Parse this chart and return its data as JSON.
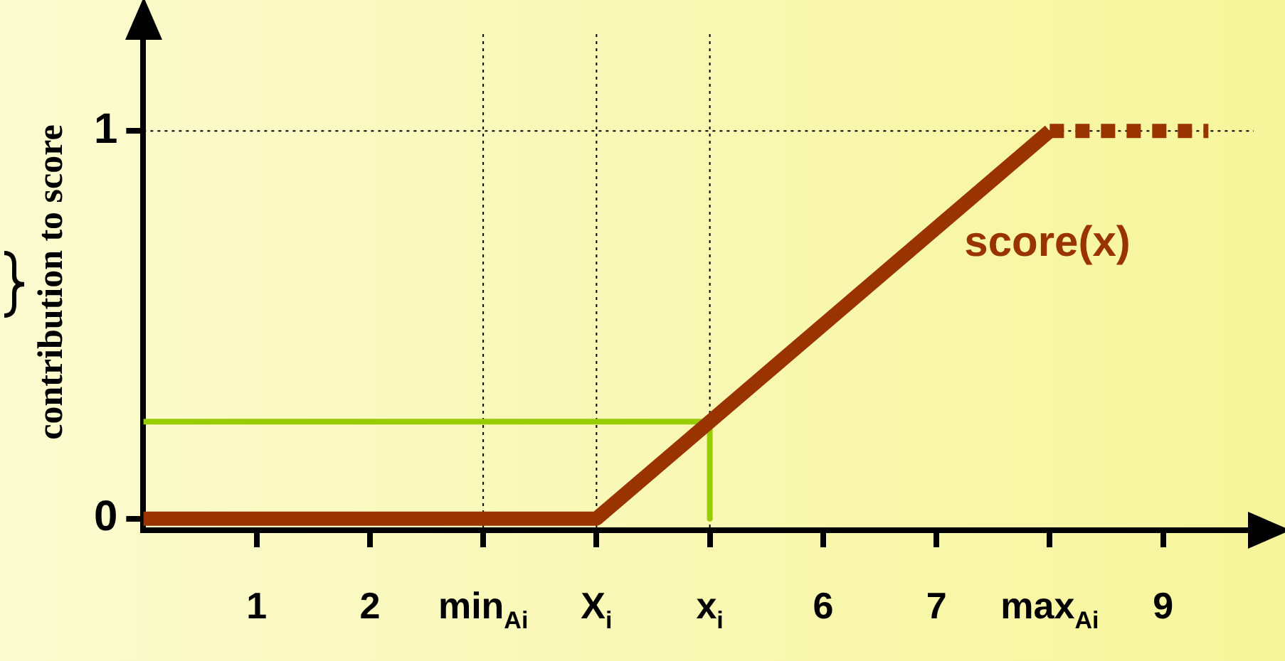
{
  "chart_data": {
    "type": "line",
    "ylabel": "contribution to score",
    "xlim": [
      0,
      9.8
    ],
    "ylim": [
      -0.03,
      1.25
    ],
    "xticks": [
      {
        "value": 1,
        "label": "1"
      },
      {
        "value": 2,
        "label": "2"
      },
      {
        "value": 3,
        "label": "min$_{Ai}$"
      },
      {
        "value": 4,
        "label": "X$_{i}$"
      },
      {
        "value": 5,
        "label": "x$_{i}$"
      },
      {
        "value": 6,
        "label": "6"
      },
      {
        "value": 7,
        "label": "7"
      },
      {
        "value": 8,
        "label": "max$_{Ai}$"
      },
      {
        "value": 9,
        "label": "9"
      }
    ],
    "yticks": [
      0,
      1
    ],
    "series": [
      {
        "name": "score(x)",
        "color": "#993300",
        "x": [
          0,
          4,
          8
        ],
        "values": [
          0,
          0,
          1
        ],
        "line_style": "solid"
      },
      {
        "color": "#993300",
        "x": [
          8,
          9.4
        ],
        "values": [
          1,
          1
        ],
        "line_style": "dashed"
      },
      {
        "color": "#99cc00",
        "x": [
          0,
          5,
          5
        ],
        "values": [
          0.25,
          0.25,
          0
        ],
        "line_style": "solid"
      }
    ],
    "ref_lines": [
      {
        "axis": "x",
        "value": 3,
        "line_style": "dotted"
      },
      {
        "axis": "x",
        "value": 4,
        "line_style": "dotted"
      },
      {
        "axis": "x",
        "value": 5,
        "line_style": "dotted"
      },
      {
        "axis": "y",
        "value": 1,
        "line_style": "dotted"
      }
    ],
    "legend": false,
    "grid": false,
    "marker": "none"
  }
}
